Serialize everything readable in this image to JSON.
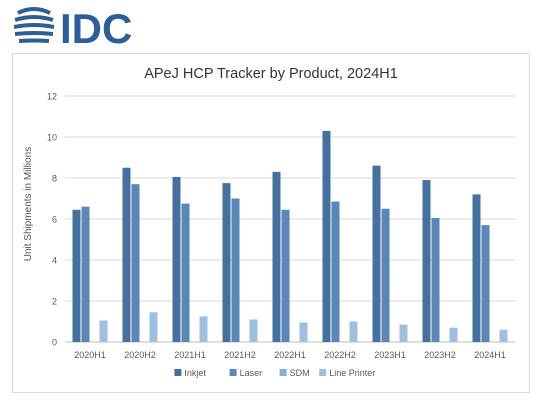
{
  "brand": {
    "name": "IDC",
    "color": "#2e5e99"
  },
  "chart_data": {
    "type": "bar",
    "title": "APeJ HCP Tracker by Product, 2024H1",
    "xlabel": "",
    "ylabel": "Unit Shipments in Millions",
    "ylim": [
      0,
      12
    ],
    "yticks": [
      0,
      2,
      4,
      6,
      8,
      10,
      12
    ],
    "grid": true,
    "legend_position": "bottom",
    "categories": [
      "2020H1",
      "2020H2",
      "2021H1",
      "2021H2",
      "2022H1",
      "2022H2",
      "2023H1",
      "2023H2",
      "2024H1"
    ],
    "series": [
      {
        "name": "Inkjet",
        "color": "#46709e",
        "values": [
          6.45,
          8.5,
          8.05,
          7.75,
          8.3,
          10.3,
          8.6,
          7.9,
          7.2
        ]
      },
      {
        "name": "Laser",
        "color": "#5a86b8",
        "values": [
          6.6,
          7.7,
          6.75,
          7.0,
          6.45,
          6.85,
          6.5,
          6.05,
          5.7
        ]
      },
      {
        "name": "SDM",
        "color": "#8aaedb",
        "values": [
          0,
          0,
          0,
          0,
          0,
          0,
          0,
          0,
          0
        ]
      },
      {
        "name": "Line Printer",
        "color": "#9fbfe0",
        "values": [
          1.05,
          1.45,
          1.25,
          1.1,
          0.95,
          1.0,
          0.85,
          0.7,
          0.6
        ]
      }
    ]
  }
}
